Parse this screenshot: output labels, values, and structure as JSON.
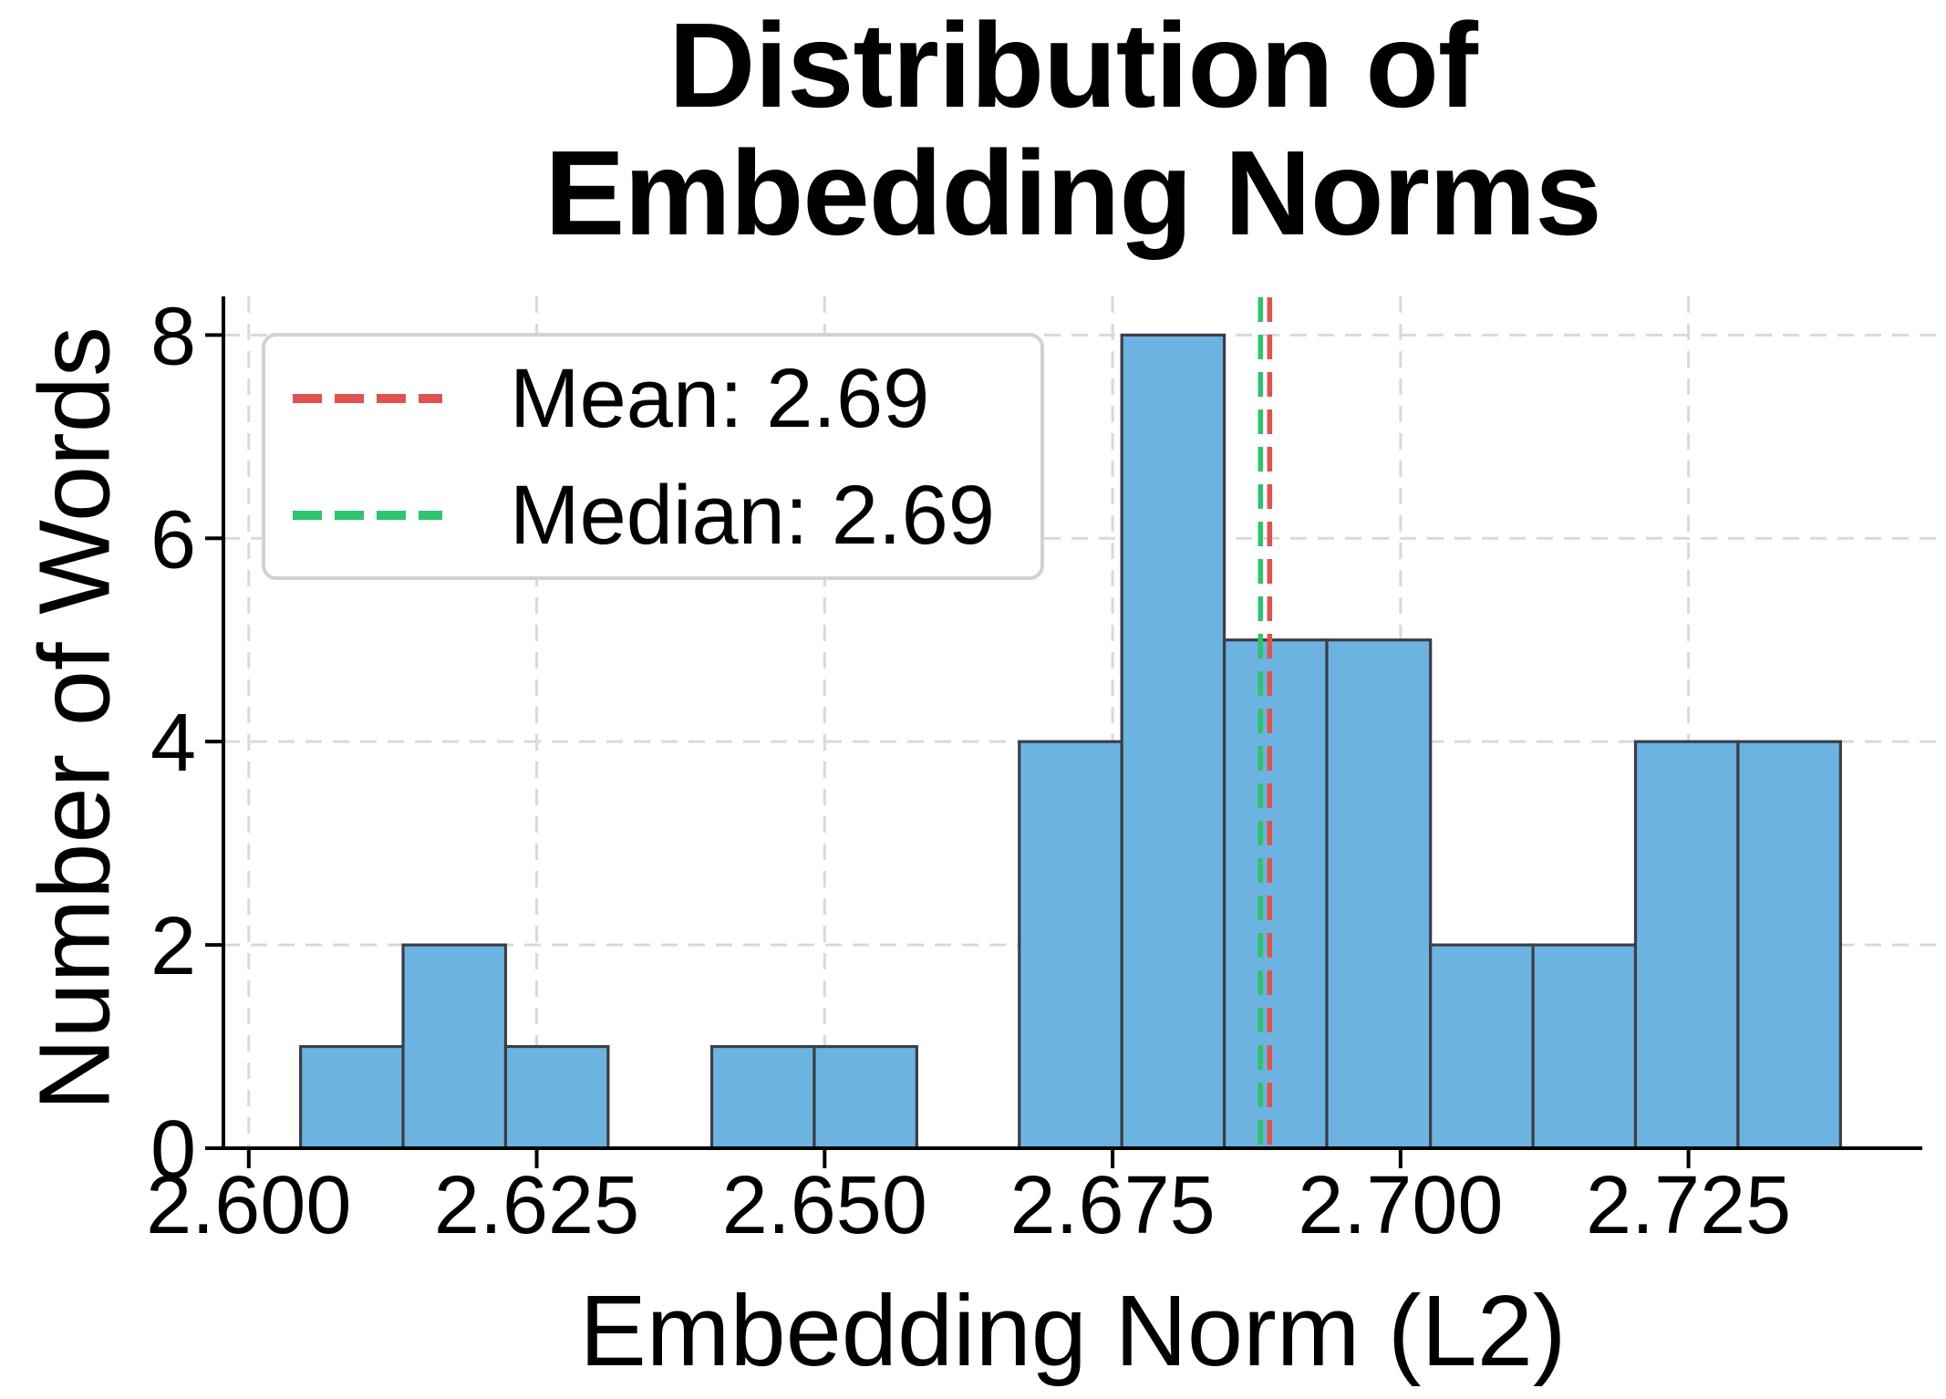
{
  "figure": {
    "title_lines": [
      "Distribution of",
      "Embedding Norms"
    ],
    "xlabel": "Embedding Norm (L2)",
    "ylabel": "Number of Words"
  },
  "legend": {
    "mean_label": "Mean: 2.69",
    "median_label": "Median: 2.69"
  },
  "chart_data": {
    "type": "histogram",
    "title": "Distribution of Embedding Norms",
    "xlabel": "Embedding Norm (L2)",
    "ylabel": "Number of Words",
    "bin_edges": [
      2.6045,
      2.6134,
      2.6223,
      2.6312,
      2.6402,
      2.6491,
      2.658,
      2.6669,
      2.6758,
      2.6847,
      2.6936,
      2.7026,
      2.7115,
      2.7204,
      2.7293,
      2.7382
    ],
    "counts": [
      1,
      2,
      1,
      0,
      1,
      1,
      0,
      4,
      8,
      5,
      5,
      2,
      2,
      4,
      4
    ],
    "total_words": 40,
    "mean": 2.69,
    "median": 2.69,
    "mean_line_x": 2.6884,
    "median_line_x": 2.688,
    "x_ticks": [
      2.6,
      2.625,
      2.65,
      2.675,
      2.7,
      2.725
    ],
    "x_tick_labels": [
      "2.600",
      "2.625",
      "2.650",
      "2.675",
      "2.700",
      "2.725"
    ],
    "y_ticks": [
      0,
      2,
      4,
      6,
      8
    ],
    "y_tick_labels": [
      "0",
      "2",
      "4",
      "6",
      "8"
    ],
    "xlim": [
      2.5978,
      2.7453
    ],
    "ylim": [
      0,
      8.38
    ],
    "grid": true,
    "legend_position": "upper left",
    "colors": {
      "bar_fill": "#6db3e2",
      "bar_edge": "#3a3e45",
      "mean_line": "#e0524e",
      "median_line": "#2dc46e",
      "grid_line": "#d9d9d9",
      "axis": "#000000",
      "legend_border": "#d2d2d2"
    }
  }
}
